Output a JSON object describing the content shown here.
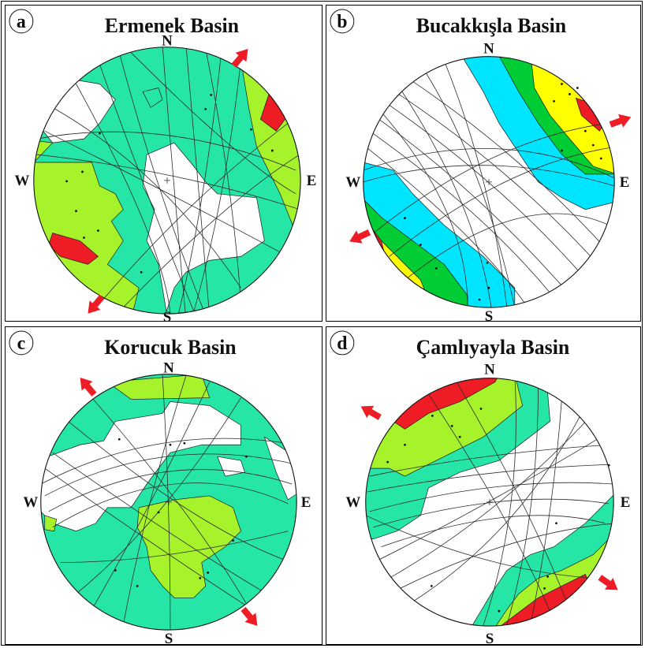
{
  "colors": {
    "red": "#ee1c24",
    "yellow_green": "#a6f22b",
    "green": "#00cc33",
    "yellow": "#ffff00",
    "cyan": "#00e5ff",
    "teal": "#25e6a6",
    "white": "#ffffff"
  },
  "compass": {
    "north": "N",
    "south": "S",
    "east": "E",
    "west": "W"
  },
  "panels": [
    {
      "letter": "a",
      "title": "Ermenek Basin",
      "contour_levels": [
        "white",
        "teal",
        "yellow_green",
        "red"
      ],
      "extension_arrows": [
        "NE",
        "SW"
      ]
    },
    {
      "letter": "b",
      "title": "Bucakkışla Basin",
      "contour_levels": [
        "white",
        "cyan",
        "green",
        "yellow",
        "red"
      ],
      "extension_arrows": [
        "E",
        "SW"
      ]
    },
    {
      "letter": "c",
      "title": "Korucuk Basin",
      "contour_levels": [
        "white",
        "teal",
        "yellow_green"
      ],
      "extension_arrows": [
        "NW",
        "SE"
      ]
    },
    {
      "letter": "d",
      "title": "Çamlıyayla Basin",
      "contour_levels": [
        "white",
        "teal",
        "yellow_green",
        "red"
      ],
      "extension_arrows": [
        "NW",
        "SE"
      ]
    }
  ]
}
